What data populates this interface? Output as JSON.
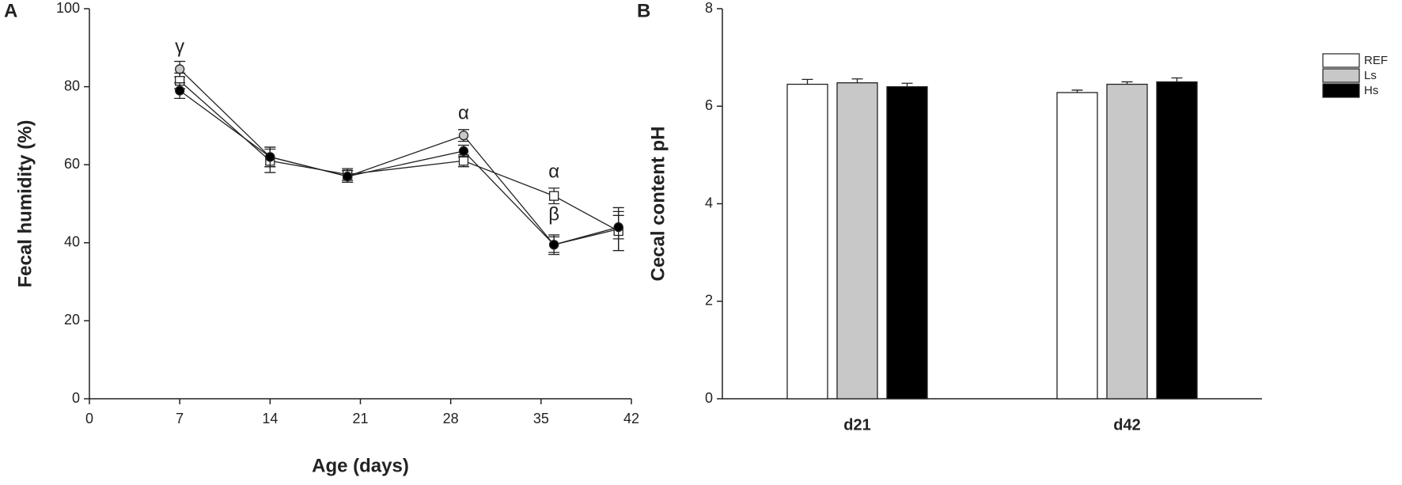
{
  "chart_data": [
    {
      "type": "line",
      "panel_label": "A",
      "xlabel": "Age (days)",
      "ylabel": "Fecal humidity (%)",
      "x": [
        7,
        14,
        20,
        29,
        36,
        41
      ],
      "xlim": [
        0,
        42
      ],
      "xticks": [
        0,
        7,
        14,
        21,
        28,
        35,
        42
      ],
      "ylim": [
        0,
        100
      ],
      "yticks": [
        0,
        20,
        40,
        60,
        80,
        100
      ],
      "series": [
        {
          "marker": "circle",
          "color": "#c8c8c8",
          "values": [
            84.5,
            62,
            57,
            67.5,
            39.5,
            43.5
          ],
          "errors": [
            2,
            2.5,
            1.5,
            1.5,
            2,
            5.5
          ]
        },
        {
          "marker": "square",
          "color": "#ffffff",
          "values": [
            81.5,
            61,
            57.5,
            61,
            52,
            43
          ],
          "errors": [
            2,
            3,
            1.5,
            1.5,
            2,
            5
          ]
        },
        {
          "marker": "circle",
          "color": "#000000",
          "values": [
            79,
            62,
            57,
            63.5,
            39.5,
            44
          ],
          "errors": [
            2,
            2.5,
            1.5,
            1.5,
            2.5,
            3
          ]
        }
      ],
      "annotations": [
        {
          "text": "γ",
          "x": 7,
          "y": 90
        },
        {
          "text": "α",
          "x": 29,
          "y": 73
        },
        {
          "text": "α",
          "x": 36,
          "y": 58
        },
        {
          "text": "β",
          "x": 36,
          "y": 47
        }
      ]
    },
    {
      "type": "bar",
      "panel_label": "B",
      "ylabel": "Cecal content pH",
      "categories": [
        "d21",
        "d42"
      ],
      "ylim": [
        0,
        8
      ],
      "yticks": [
        0,
        2,
        4,
        6,
        8
      ],
      "legend": "right",
      "series": [
        {
          "name": "REF",
          "color": "#ffffff",
          "values": [
            6.45,
            6.28
          ],
          "errors": [
            0.1,
            0.05
          ]
        },
        {
          "name": "Ls",
          "color": "#c8c8c8",
          "values": [
            6.48,
            6.45
          ],
          "errors": [
            0.08,
            0.05
          ]
        },
        {
          "name": "Hs",
          "color": "#000000",
          "values": [
            6.4,
            6.5
          ],
          "errors": [
            0.07,
            0.08
          ]
        }
      ]
    }
  ]
}
